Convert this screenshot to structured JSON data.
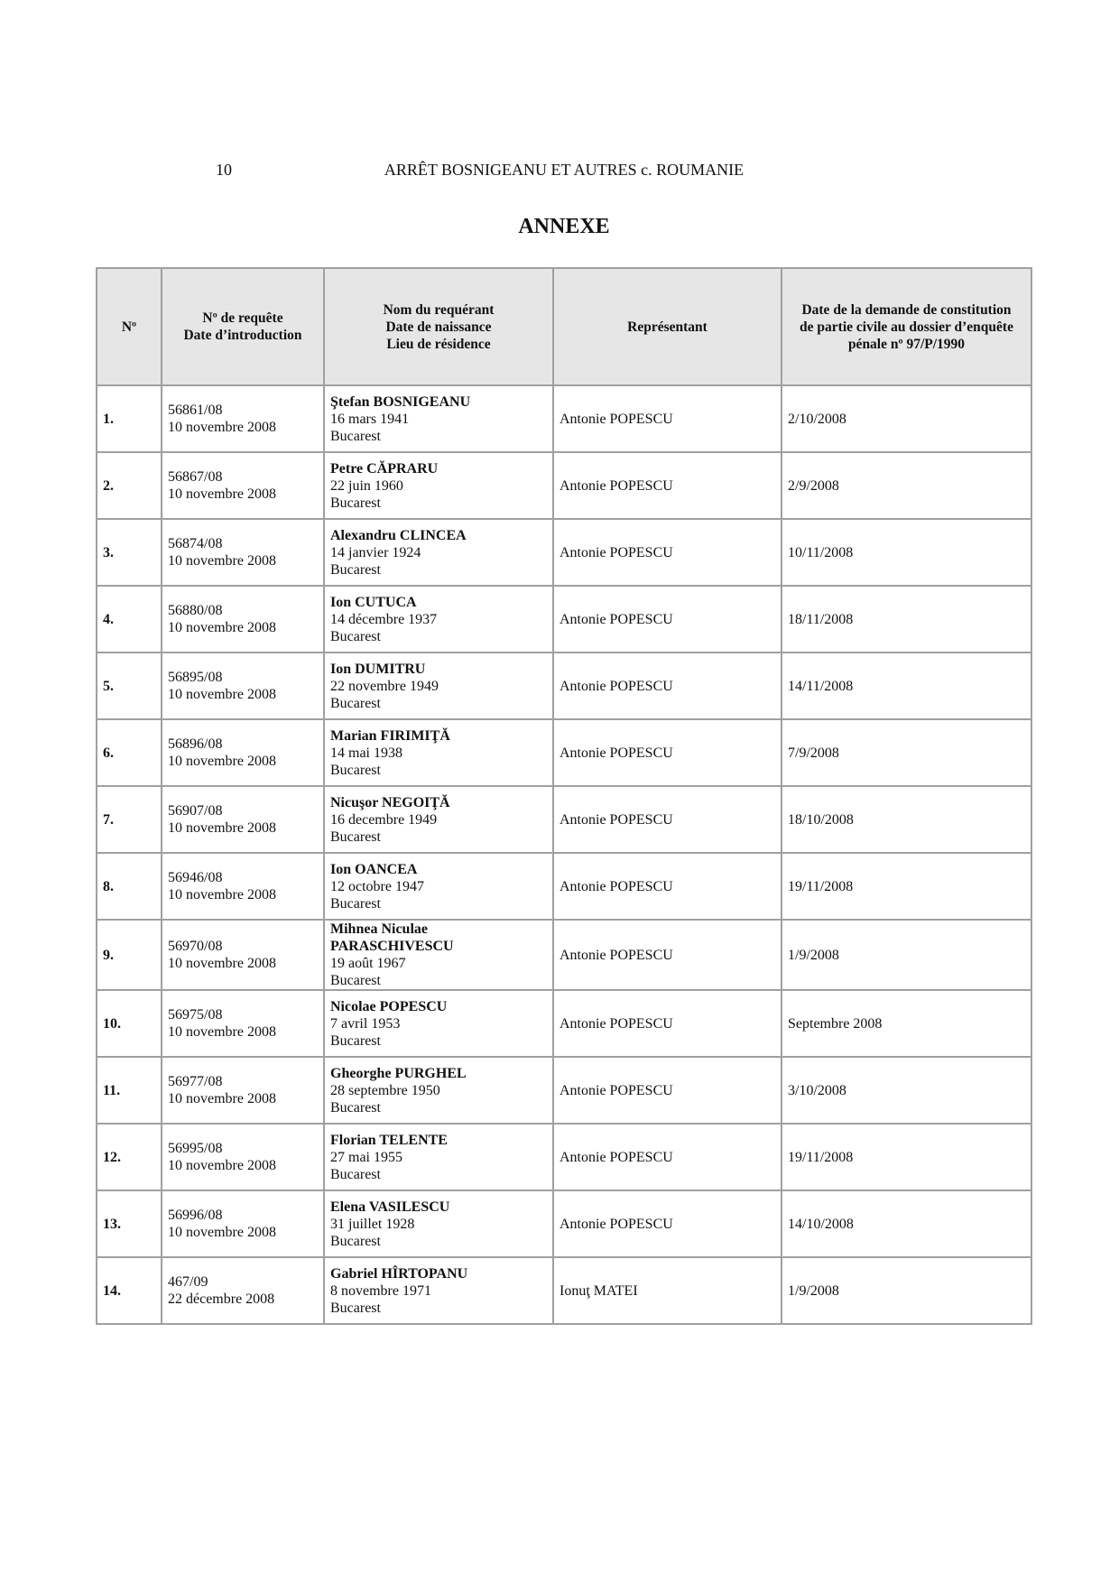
{
  "header": {
    "page_number": "10",
    "running_title": "ARRÊT BOSNIGEANU ET AUTRES c. ROUMANIE"
  },
  "section_title": "ANNEXE",
  "table": {
    "columns": [
      [
        "Nº"
      ],
      [
        "Nº de requête",
        "Date d’introduction"
      ],
      [
        "Nom du requérant",
        "Date de naissance",
        "Lieu de résidence"
      ],
      [
        "Représentant"
      ],
      [
        "Date de la demande de constitution",
        "de partie civile au dossier d’enquête",
        "pénale nº 97/P/1990"
      ]
    ],
    "rows": [
      {
        "no": "1.",
        "app": "56861/08",
        "intro": "10 novembre 2008",
        "name": "Ştefan BOSNIGEANU",
        "birth": "16 mars 1941",
        "residence": "Bucarest",
        "rep": "Antonie POPESCU",
        "date": "2/10/2008"
      },
      {
        "no": "2.",
        "app": "56867/08",
        "intro": "10 novembre 2008",
        "name": "Petre CĂPRARU",
        "birth": "22 juin 1960",
        "residence": "Bucarest",
        "rep": "Antonie POPESCU",
        "date": "2/9/2008"
      },
      {
        "no": "3.",
        "app": "56874/08",
        "intro": "10 novembre 2008",
        "name": "Alexandru CLINCEA",
        "birth": "14 janvier 1924",
        "residence": "Bucarest",
        "rep": "Antonie POPESCU",
        "date": "10/11/2008"
      },
      {
        "no": "4.",
        "app": "56880/08",
        "intro": "10 novembre 2008",
        "name": "Ion CUTUCA",
        "birth": "14 décembre 1937",
        "residence": "Bucarest",
        "rep": "Antonie POPESCU",
        "date": "18/11/2008"
      },
      {
        "no": "5.",
        "app": "56895/08",
        "intro": "10 novembre 2008",
        "name": "Ion DUMITRU",
        "birth": "22 novembre 1949",
        "residence": "Bucarest",
        "rep": "Antonie POPESCU",
        "date": "14/11/2008"
      },
      {
        "no": "6.",
        "app": "56896/08",
        "intro": "10 novembre 2008",
        "name": "Marian FIRIMIŢĂ",
        "birth": "14 mai 1938",
        "residence": "Bucarest",
        "rep": "Antonie POPESCU",
        "date": "7/9/2008"
      },
      {
        "no": "7.",
        "app": "56907/08",
        "intro": "10 novembre 2008",
        "name": "Nicuşor NEGOIŢĂ",
        "birth": "16 decembre 1949",
        "residence": "Bucarest",
        "rep": "Antonie POPESCU",
        "date": "18/10/2008"
      },
      {
        "no": "8.",
        "app": "56946/08",
        "intro": "10 novembre 2008",
        "name": "Ion OANCEA",
        "birth": "12 octobre 1947",
        "residence": "Bucarest",
        "rep": "Antonie POPESCU",
        "date": "19/11/2008"
      },
      {
        "no": "9.",
        "app": "56970/08",
        "intro": "10 novembre 2008",
        "name": "Mihnea Niculae PARASCHIVESCU",
        "birth": "19 août 1967",
        "residence": "Bucarest",
        "rep": "Antonie POPESCU",
        "date": "1/9/2008"
      },
      {
        "no": "10.",
        "app": "56975/08",
        "intro": "10 novembre 2008",
        "name": "Nicolae POPESCU",
        "birth": "7 avril 1953",
        "residence": "Bucarest",
        "rep": "Antonie POPESCU",
        "date": "Septembre 2008"
      },
      {
        "no": "11.",
        "app": "56977/08",
        "intro": "10 novembre 2008",
        "name": "Gheorghe PURGHEL",
        "birth": "28 septembre 1950",
        "residence": "Bucarest",
        "rep": "Antonie POPESCU",
        "date": "3/10/2008"
      },
      {
        "no": "12.",
        "app": "56995/08",
        "intro": "10 novembre 2008",
        "name": "Florian TELENTE",
        "birth": "27 mai 1955",
        "residence": "Bucarest",
        "rep": "Antonie POPESCU",
        "date": "19/11/2008"
      },
      {
        "no": "13.",
        "app": "56996/08",
        "intro": "10 novembre 2008",
        "name": "Elena VASILESCU",
        "birth": "31 juillet 1928",
        "residence": "Bucarest",
        "rep": "Antonie POPESCU",
        "date": "14/10/2008"
      },
      {
        "no": "14.",
        "app": "467/09",
        "intro": "22 décembre 2008",
        "name": "Gabriel HÎRTOPANU",
        "birth": "8 novembre 1971",
        "residence": "Bucarest",
        "rep": "Ionuţ MATEI",
        "date": "1/9/2008"
      }
    ]
  }
}
